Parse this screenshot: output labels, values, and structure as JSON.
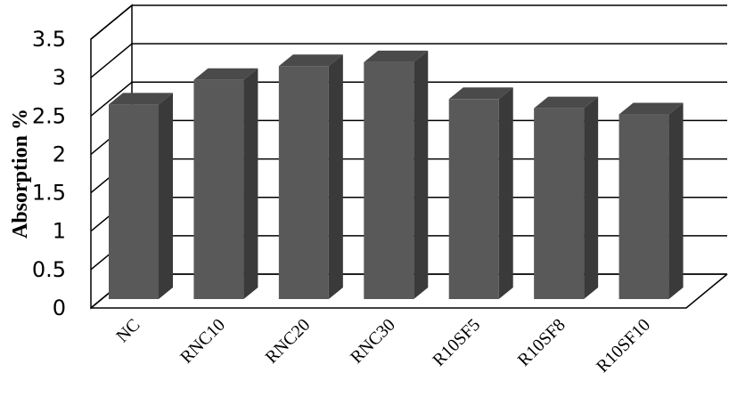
{
  "chart_data": {
    "type": "bar",
    "categories": [
      "NC",
      "RNC10",
      "RNC20",
      "RNC30",
      "R10SF5",
      "R10SF8",
      "R10SF10"
    ],
    "values": [
      2.65,
      2.97,
      3.15,
      3.2,
      2.72,
      2.6,
      2.52
    ],
    "title": "",
    "xlabel": "",
    "ylabel": "Absorption %",
    "ylim": [
      0,
      3.5
    ],
    "yticks": [
      "0",
      "0.5",
      "1",
      "1.5",
      "2",
      "2.5",
      "3",
      "3.5"
    ],
    "grid": true,
    "legend": "none",
    "style": "3d-column",
    "colors": {
      "bar_front": "#595959",
      "bar_side": "#3a3a3a",
      "bar_top": "#4a4a4a",
      "grid": "#000000"
    }
  }
}
